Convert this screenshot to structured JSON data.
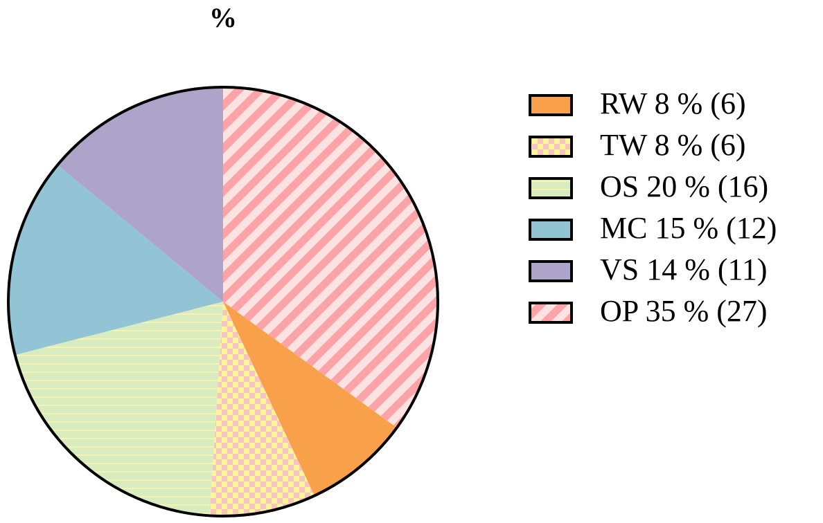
{
  "chart_data": {
    "type": "pie",
    "title": "%",
    "categories": [
      "RW 8 %  (6)",
      "TW 8 %  (6)",
      "OS  20 %  (16)",
      "MC 15 %  (12)",
      "VS  14 %  (11)",
      "OP  35 %  (27)"
    ],
    "values": [
      8,
      8,
      20,
      15,
      14,
      35
    ],
    "colors": [
      "#f9a04a",
      "#f7c4c0",
      "#d9ecbf",
      "#93c4d6",
      "#aea3c9",
      "#fba3a6"
    ],
    "patterns": [
      "solid",
      "checker",
      "hlines",
      "solid",
      "solid",
      "diagonal"
    ],
    "legend": "right"
  }
}
